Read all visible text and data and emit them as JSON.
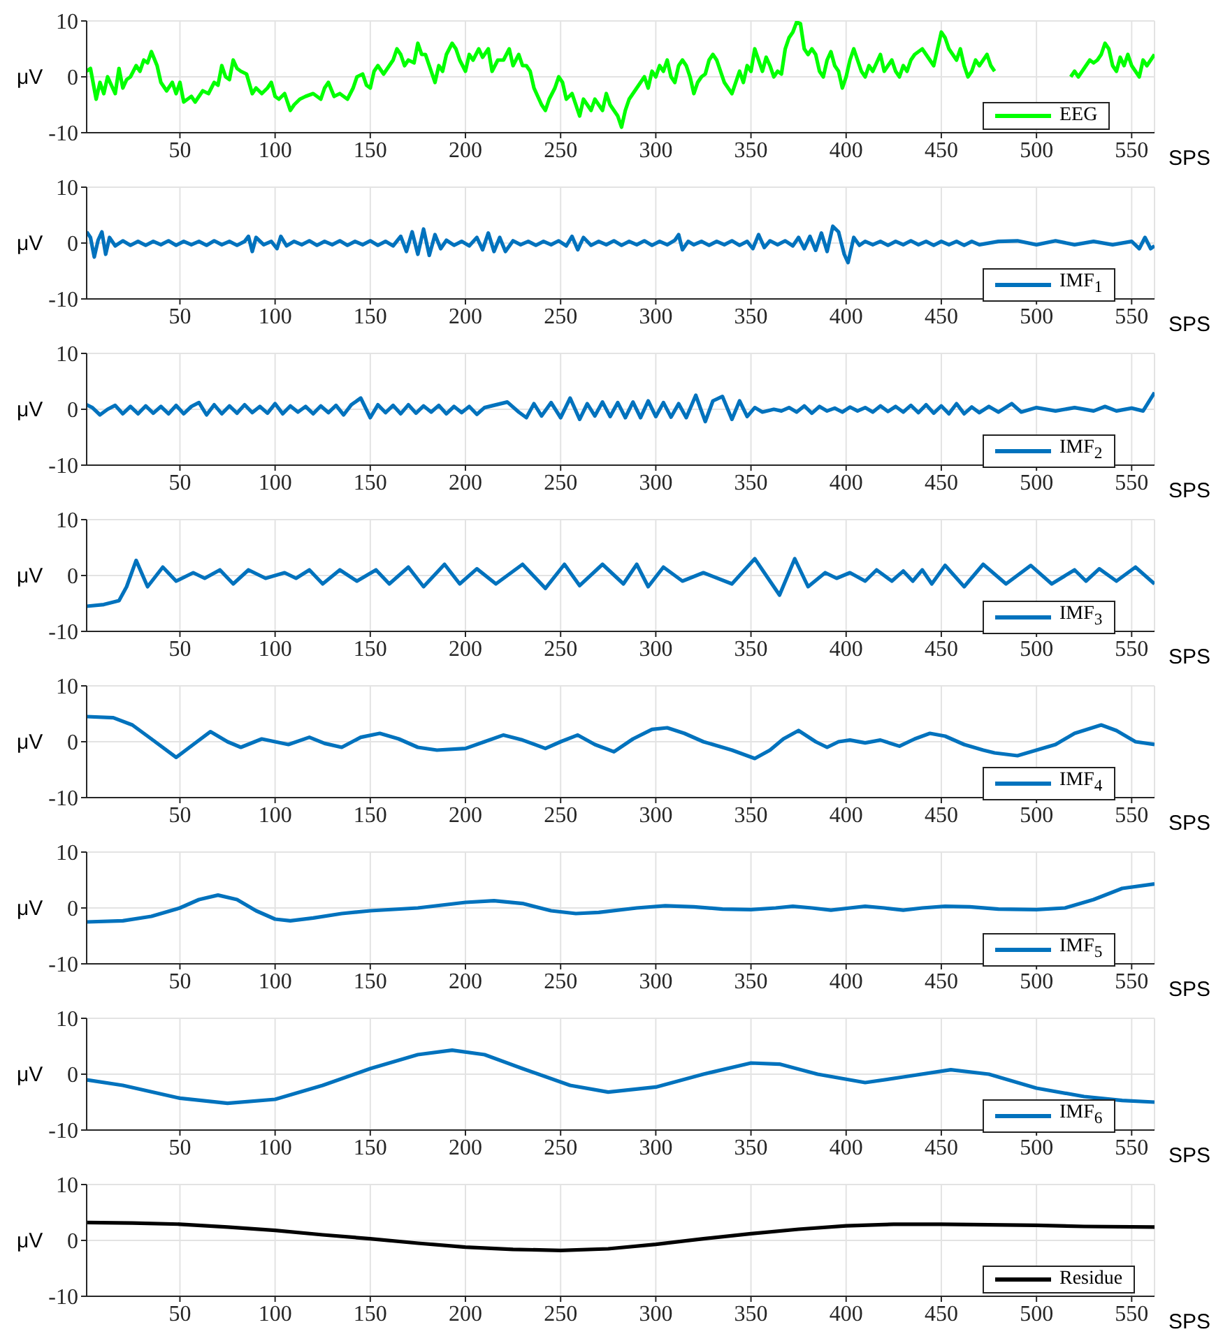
{
  "chart_data": [
    {
      "type": "line",
      "xlabel": "SPS",
      "ylabel": "μV",
      "xlim": [
        1,
        562
      ],
      "xticks": [
        50,
        100,
        150,
        200,
        250,
        300,
        350,
        400,
        450,
        500,
        550
      ],
      "ylim": [
        -10,
        10
      ],
      "yticks": [
        -10,
        0,
        10
      ],
      "grid": true,
      "legend": "bottom right",
      "x": [
        1,
        3,
        6,
        8,
        10,
        12,
        14,
        16,
        18,
        20,
        22,
        24,
        27,
        29,
        31,
        33,
        35,
        38,
        40,
        43,
        46,
        48,
        50,
        52,
        56,
        58,
        62,
        65,
        68,
        70,
        72,
        74,
        76,
        78,
        80,
        82,
        85,
        88,
        90,
        93,
        96,
        98,
        100,
        102,
        105,
        108,
        110,
        113,
        116,
        120,
        124,
        126,
        128,
        131,
        134,
        138,
        141,
        143,
        146,
        148,
        150,
        152,
        154,
        157,
        160,
        162,
        164,
        166,
        168,
        170,
        173,
        175,
        177,
        179,
        181,
        184,
        186,
        188,
        190,
        193,
        195,
        197,
        200,
        202,
        204,
        207,
        209,
        212,
        214,
        217,
        220,
        223,
        225,
        228,
        230,
        232,
        234,
        236,
        238,
        240,
        242,
        244,
        247,
        249,
        251,
        253,
        256,
        258,
        260,
        262,
        264,
        266,
        268,
        270,
        272,
        274,
        276,
        278,
        280,
        282,
        284,
        286,
        288,
        290,
        292,
        294,
        296,
        298,
        300,
        302,
        304,
        306,
        308,
        310,
        312,
        314,
        316,
        318,
        320,
        322,
        324,
        326,
        328,
        330,
        332,
        334,
        336,
        338,
        340,
        342,
        344,
        346,
        348,
        350,
        352,
        354,
        356,
        358,
        360,
        362,
        364,
        366,
        368,
        370,
        372,
        374,
        376,
        378,
        380,
        382,
        384,
        386,
        388,
        390,
        392,
        394,
        396,
        398,
        400,
        402,
        404,
        406,
        408,
        410,
        412,
        414,
        416,
        418,
        420,
        422,
        424,
        426,
        428,
        430,
        432,
        434,
        436,
        438,
        440,
        442,
        444,
        446,
        448,
        450,
        452,
        454,
        456,
        458,
        460,
        462,
        464,
        466,
        468,
        470,
        472,
        474,
        476,
        478,
        495,
        518,
        520,
        522,
        524,
        526,
        528,
        530,
        532,
        534,
        536,
        538,
        540,
        542,
        544,
        546,
        548,
        550,
        552,
        554,
        556,
        558,
        560,
        562
      ],
      "series": [
        {
          "name": "EEG",
          "color": "#00ff00",
          "values": [
            1,
            1.5,
            -4,
            -1,
            -3,
            0,
            -1.5,
            -3,
            1.5,
            -2,
            -0.5,
            0,
            2,
            1,
            3,
            2.5,
            4.5,
            2,
            -1,
            -2.5,
            -1,
            -3,
            -1,
            -4.5,
            -3.5,
            -4.5,
            -2.5,
            -3,
            -1,
            -1.5,
            2,
            0,
            -0.5,
            3,
            1.5,
            1,
            0.5,
            -3,
            -2,
            -3,
            -2,
            -1,
            -3.5,
            -4,
            -3,
            -6,
            -5,
            -4,
            -3.5,
            -3,
            -4,
            -2,
            -1,
            -3.5,
            -3,
            -4,
            -2,
            0,
            0.5,
            -1.5,
            -2,
            1,
            2,
            0.5,
            2,
            3,
            5,
            4,
            2,
            3,
            2.5,
            6,
            4,
            4,
            2,
            -1,
            2,
            1,
            4,
            6,
            5,
            3,
            1,
            4,
            3,
            5,
            3.5,
            5,
            1,
            3,
            3,
            5,
            2,
            4,
            2,
            2,
            1,
            -2,
            -3.5,
            -5,
            -6,
            -4,
            -2,
            0,
            -1,
            -4,
            -3,
            -5,
            -7,
            -4,
            -5,
            -6,
            -4,
            -5,
            -6,
            -3,
            -5,
            -6,
            -7,
            -9,
            -6,
            -4,
            -3,
            -2,
            -1,
            0,
            -2,
            1,
            0,
            2,
            1,
            3,
            0,
            -1,
            2,
            3,
            2,
            0,
            -3,
            -1,
            0,
            0.5,
            3,
            4,
            3,
            1,
            -1,
            -2,
            -3,
            -1,
            1,
            -1,
            2,
            1,
            5,
            3,
            1,
            3.5,
            2,
            0,
            1,
            0.5,
            5,
            7,
            8,
            9.8,
            9.5,
            5,
            4,
            5,
            4,
            1,
            0,
            3,
            4.5,
            2,
            1,
            -2,
            0,
            3,
            5,
            3,
            1,
            0,
            2,
            1,
            2.5,
            4,
            1,
            2,
            3,
            1,
            0,
            2,
            1,
            3,
            4,
            4.5,
            5,
            4,
            3,
            2,
            5,
            8,
            7,
            5,
            4,
            3,
            5,
            2,
            0,
            1,
            3,
            2,
            3,
            4,
            2,
            1,
            null,
            0,
            1,
            0,
            1,
            2,
            3,
            2.5,
            3,
            4,
            6,
            5,
            2,
            1,
            3.5,
            2,
            4,
            2,
            1,
            0,
            3,
            2,
            3,
            4
          ]
        }
      ]
    },
    {
      "type": "line",
      "xlabel": "SPS",
      "ylabel": "μV",
      "xlim": [
        1,
        562
      ],
      "xticks": [
        50,
        100,
        150,
        200,
        250,
        300,
        350,
        400,
        450,
        500,
        550
      ],
      "ylim": [
        -10,
        10
      ],
      "yticks": [
        -10,
        0,
        10
      ],
      "grid": true,
      "legend": "bottom right",
      "x": [
        1,
        3,
        5,
        7,
        9,
        11,
        13,
        16,
        20,
        24,
        28,
        32,
        36,
        40,
        44,
        48,
        52,
        56,
        60,
        64,
        68,
        72,
        76,
        80,
        84,
        86,
        88,
        90,
        94,
        98,
        101,
        103,
        106,
        110,
        114,
        118,
        122,
        126,
        130,
        134,
        138,
        142,
        146,
        150,
        154,
        158,
        162,
        166,
        169,
        172,
        175,
        178,
        181,
        184,
        187,
        190,
        194,
        198,
        202,
        206,
        209,
        212,
        215,
        218,
        221,
        225,
        229,
        233,
        237,
        241,
        245,
        249,
        253,
        256,
        259,
        262,
        266,
        270,
        274,
        278,
        282,
        286,
        290,
        294,
        298,
        302,
        306,
        310,
        312,
        314,
        317,
        320,
        324,
        328,
        332,
        336,
        340,
        344,
        348,
        351,
        354,
        357,
        360,
        364,
        368,
        372,
        375,
        378,
        381,
        384,
        387,
        390,
        393,
        396,
        399,
        401,
        404,
        407,
        410,
        414,
        418,
        422,
        426,
        430,
        434,
        438,
        442,
        446,
        450,
        454,
        458,
        462,
        466,
        470,
        480,
        490,
        500,
        510,
        520,
        530,
        540,
        550,
        554,
        557,
        560,
        562
      ],
      "series": [
        {
          "name": "IMF$_{1}$",
          "color": "#0072bd",
          "values": [
            2,
            1,
            -2.5,
            0.5,
            2,
            -2,
            1,
            -0.5,
            0.4,
            -0.4,
            0.3,
            -0.4,
            0.3,
            -0.3,
            0.4,
            -0.4,
            0.3,
            -0.3,
            0.3,
            -0.4,
            0.4,
            -0.3,
            0.3,
            -0.4,
            0.3,
            1.2,
            -1.5,
            1,
            -0.3,
            0.3,
            -1,
            1.2,
            -0.5,
            0.3,
            -0.3,
            0.4,
            -0.4,
            0.3,
            -0.3,
            0.4,
            -0.4,
            0.3,
            -0.3,
            0.4,
            -0.4,
            0.3,
            -0.5,
            1.2,
            -1.5,
            2,
            -2,
            2.5,
            -2.2,
            1.5,
            -1,
            0.5,
            -0.4,
            0.3,
            -0.5,
            1,
            -1.2,
            1.8,
            -1.5,
            1,
            -1.5,
            0.4,
            -0.3,
            0.3,
            -0.4,
            0.3,
            -0.3,
            0.4,
            -0.5,
            1.2,
            -1.2,
            1,
            -0.4,
            0.3,
            -0.3,
            0.4,
            -0.4,
            0.3,
            -0.3,
            0.4,
            -0.4,
            0.3,
            -0.3,
            0.5,
            1.5,
            -1.2,
            0.3,
            -0.3,
            0.3,
            -0.4,
            0.3,
            -0.3,
            0.4,
            -0.4,
            0.3,
            -1,
            1.5,
            -0.8,
            0.4,
            -0.3,
            0.4,
            -0.5,
            1,
            -1,
            1.2,
            -1.3,
            1.8,
            -1.5,
            3,
            2,
            -2,
            -3.5,
            1,
            -0.4,
            0.3,
            -0.3,
            0.3,
            -0.4,
            0.3,
            -0.3,
            0.4,
            -0.3,
            0.3,
            -0.4,
            0.3,
            -0.3,
            0.3,
            -0.4,
            0.3,
            -0.3,
            0.3,
            0.4,
            -0.3,
            0.4,
            -0.3,
            0.3,
            -0.3,
            0.3,
            -1,
            1,
            -1,
            -0.5
          ]
        }
      ]
    },
    {
      "type": "line",
      "xlabel": "SPS",
      "ylabel": "μV",
      "xlim": [
        1,
        562
      ],
      "xticks": [
        50,
        100,
        150,
        200,
        250,
        300,
        350,
        400,
        450,
        500,
        550
      ],
      "ylim": [
        -10,
        10
      ],
      "yticks": [
        -10,
        0,
        10
      ],
      "grid": true,
      "legend": "bottom right",
      "x": [
        1,
        4,
        8,
        12,
        16,
        20,
        24,
        28,
        32,
        36,
        40,
        44,
        48,
        52,
        56,
        60,
        64,
        68,
        72,
        76,
        80,
        84,
        88,
        92,
        96,
        100,
        104,
        108,
        112,
        116,
        120,
        124,
        128,
        132,
        136,
        140,
        145,
        150,
        154,
        158,
        162,
        166,
        170,
        174,
        178,
        182,
        186,
        190,
        194,
        198,
        202,
        206,
        210,
        216,
        222,
        228,
        232,
        236,
        240,
        245,
        250,
        255,
        260,
        264,
        268,
        272,
        276,
        280,
        284,
        288,
        292,
        296,
        300,
        304,
        308,
        312,
        316,
        321,
        326,
        330,
        335,
        340,
        344,
        348,
        352,
        356,
        362,
        366,
        370,
        374,
        378,
        382,
        386,
        390,
        394,
        398,
        402,
        406,
        410,
        414,
        418,
        422,
        426,
        430,
        434,
        438,
        442,
        446,
        450,
        454,
        458,
        462,
        466,
        470,
        475,
        480,
        487,
        492,
        500,
        510,
        520,
        530,
        536,
        542,
        550,
        556,
        562
      ],
      "series": [
        {
          "name": "IMF$_{2}$",
          "color": "#0072bd",
          "values": [
            0.8,
            0.3,
            -1,
            0,
            0.7,
            -0.8,
            0.5,
            -0.8,
            0.6,
            -0.7,
            0.5,
            -0.8,
            0.7,
            -0.8,
            0.5,
            1.2,
            -1,
            0.8,
            -0.8,
            0.6,
            -0.7,
            0.8,
            -0.6,
            0.5,
            -0.7,
            1,
            -0.8,
            0.6,
            -0.5,
            0.5,
            -0.8,
            0.6,
            -0.6,
            0.7,
            -1,
            0.8,
            2,
            -1.5,
            0.8,
            -0.6,
            0.7,
            -0.8,
            0.8,
            -0.7,
            0.6,
            -0.5,
            0.7,
            -0.8,
            0.5,
            -0.6,
            0.5,
            -0.9,
            0.3,
            0.8,
            1.3,
            -0.5,
            -1.5,
            1,
            -1.2,
            1.2,
            -1.5,
            2,
            -1.8,
            1,
            -1.2,
            1.3,
            -1.3,
            1.2,
            -1.5,
            1.3,
            -1.5,
            1.5,
            -1.3,
            1.2,
            -1.4,
            1,
            -1.5,
            2.5,
            -2.2,
            1.5,
            2.3,
            -1.8,
            1.5,
            -1.3,
            0.3,
            -0.5,
            0,
            -0.3,
            0.3,
            -0.5,
            0.6,
            -0.7,
            0.5,
            -0.3,
            0.2,
            -0.5,
            0.4,
            -0.3,
            0.3,
            -0.5,
            0.6,
            -0.4,
            0.5,
            -0.5,
            0.7,
            -0.6,
            0.8,
            -0.7,
            0.6,
            -0.8,
            1,
            -0.8,
            0.4,
            -0.6,
            0.5,
            -0.5,
            1,
            -0.5,
            0.3,
            -0.3,
            0.3,
            -0.3,
            0.5,
            -0.3,
            0.2,
            -0.3,
            3
          ]
        }
      ]
    },
    {
      "type": "line",
      "xlabel": "SPS",
      "ylabel": "μV",
      "xlim": [
        1,
        562
      ],
      "xticks": [
        50,
        100,
        150,
        200,
        250,
        300,
        350,
        400,
        450,
        500,
        550
      ],
      "ylim": [
        -10,
        10
      ],
      "yticks": [
        -10,
        0,
        10
      ],
      "grid": true,
      "legend": "bottom right",
      "x": [
        1,
        10,
        18,
        22,
        27,
        33,
        41,
        48,
        57,
        63,
        71,
        78,
        86,
        95,
        105,
        111,
        118,
        125,
        134,
        143,
        153,
        160,
        170,
        178,
        189,
        197,
        206,
        216,
        230,
        242,
        252,
        260,
        272,
        283,
        290,
        296,
        304,
        314,
        325,
        340,
        352,
        365,
        373,
        380,
        389,
        395,
        402,
        410,
        416,
        424,
        430,
        435,
        440,
        445,
        452,
        462,
        472,
        484,
        497,
        508,
        520,
        526,
        533,
        542,
        552,
        562
      ],
      "series": [
        {
          "name": "IMF$_{3}$",
          "color": "#0072bd",
          "values": [
            -5.5,
            -5.2,
            -4.5,
            -2,
            2.7,
            -2,
            1.5,
            -1,
            0.5,
            -0.5,
            1,
            -1.5,
            1,
            -0.5,
            0.5,
            -0.5,
            1,
            -1.5,
            1,
            -1,
            1,
            -1.5,
            1.5,
            -2,
            2,
            -1.5,
            1.2,
            -1.5,
            2,
            -2.3,
            2,
            -1.8,
            2,
            -1.5,
            2,
            -2,
            1.5,
            -1,
            0.5,
            -1.5,
            3,
            -3.5,
            3,
            -2,
            0.5,
            -0.5,
            0.5,
            -1,
            1,
            -1,
            0.8,
            -1,
            1,
            -1.5,
            1.8,
            -2,
            2,
            -1.5,
            1.8,
            -1.5,
            1,
            -1,
            1.2,
            -1,
            1.5,
            -1.5
          ]
        }
      ]
    },
    {
      "type": "line",
      "xlabel": "SPS",
      "ylabel": "μV",
      "xlim": [
        1,
        562
      ],
      "xticks": [
        50,
        100,
        150,
        200,
        250,
        300,
        350,
        400,
        450,
        500,
        550
      ],
      "ylim": [
        -10,
        10
      ],
      "yticks": [
        -10,
        0,
        10
      ],
      "grid": true,
      "legend": "bottom right",
      "x": [
        1,
        15,
        25,
        35,
        48,
        57,
        66,
        75,
        82,
        93,
        100,
        107,
        118,
        126,
        135,
        145,
        155,
        165,
        175,
        185,
        200,
        210,
        220,
        230,
        242,
        250,
        259,
        268,
        278,
        288,
        298,
        306,
        315,
        325,
        340,
        352,
        360,
        367,
        375,
        384,
        390,
        396,
        402,
        410,
        418,
        428,
        436,
        444,
        452,
        462,
        472,
        478,
        490,
        500,
        510,
        520,
        534,
        542,
        552,
        562
      ],
      "series": [
        {
          "name": "IMF$_{4}$",
          "color": "#0072bd",
          "values": [
            4.5,
            4.3,
            3,
            0.5,
            -2.8,
            -0.5,
            1.8,
            0,
            -1,
            0.5,
            0,
            -0.5,
            0.8,
            -0.3,
            -1,
            0.8,
            1.5,
            0.5,
            -1,
            -1.5,
            -1.2,
            0,
            1.2,
            0.3,
            -1.2,
            0,
            1.2,
            -0.5,
            -1.8,
            0.5,
            2.2,
            2.5,
            1.5,
            0,
            -1.5,
            -3,
            -1.5,
            0.5,
            2,
            0,
            -1,
            0,
            0.3,
            -0.2,
            0.3,
            -0.8,
            0.5,
            1.5,
            1,
            -0.5,
            -1.5,
            -2,
            -2.5,
            -1.5,
            -0.5,
            1.5,
            3,
            2,
            0,
            -0.5
          ]
        }
      ]
    },
    {
      "type": "line",
      "xlabel": "SPS",
      "ylabel": "μV",
      "xlim": [
        1,
        562
      ],
      "xticks": [
        50,
        100,
        150,
        200,
        250,
        300,
        350,
        400,
        450,
        500,
        550
      ],
      "ylim": [
        -10,
        10
      ],
      "yticks": [
        -10,
        0,
        10
      ],
      "grid": true,
      "legend": "bottom right",
      "x": [
        1,
        20,
        35,
        50,
        60,
        70,
        80,
        90,
        100,
        108,
        120,
        135,
        150,
        175,
        200,
        215,
        230,
        245,
        258,
        270,
        290,
        305,
        320,
        335,
        350,
        363,
        372,
        382,
        392,
        402,
        410,
        420,
        430,
        440,
        452,
        465,
        480,
        500,
        515,
        530,
        545,
        562
      ],
      "series": [
        {
          "name": "IMF$_{5}$",
          "color": "#0072bd",
          "values": [
            -2.5,
            -2.3,
            -1.5,
            0,
            1.5,
            2.3,
            1.5,
            -0.5,
            -2,
            -2.3,
            -1.8,
            -1,
            -0.5,
            0,
            1,
            1.3,
            0.8,
            -0.5,
            -1,
            -0.8,
            0,
            0.4,
            0.2,
            -0.2,
            -0.3,
            0,
            0.3,
            0,
            -0.4,
            0,
            0.3,
            0,
            -0.4,
            0,
            0.3,
            0.2,
            -0.2,
            -0.3,
            0,
            1.5,
            3.5,
            4.3
          ]
        }
      ]
    },
    {
      "type": "line",
      "xlabel": "SPS",
      "ylabel": "μV",
      "xlim": [
        1,
        562
      ],
      "xticks": [
        50,
        100,
        150,
        200,
        250,
        300,
        350,
        400,
        450,
        500,
        550
      ],
      "ylim": [
        -10,
        10
      ],
      "yticks": [
        -10,
        0,
        10
      ],
      "grid": true,
      "legend": "bottom right",
      "x": [
        1,
        20,
        50,
        75,
        100,
        125,
        150,
        175,
        193,
        210,
        230,
        255,
        275,
        300,
        325,
        350,
        365,
        385,
        410,
        430,
        455,
        475,
        500,
        525,
        545,
        562
      ],
      "series": [
        {
          "name": "IMF$_{6}$",
          "color": "#0072bd",
          "values": [
            -1,
            -2,
            -4.3,
            -5.2,
            -4.5,
            -2,
            1,
            3.5,
            4.3,
            3.5,
            1,
            -2,
            -3.2,
            -2.3,
            0,
            2,
            1.8,
            0,
            -1.5,
            -0.5,
            0.8,
            0,
            -2.5,
            -4,
            -4.7,
            -5
          ]
        }
      ]
    },
    {
      "type": "line",
      "xlabel": "SPS",
      "ylabel": "μV",
      "xlim": [
        1,
        562
      ],
      "xticks": [
        50,
        100,
        150,
        200,
        250,
        300,
        350,
        400,
        450,
        500,
        550
      ],
      "ylim": [
        -10,
        10
      ],
      "yticks": [
        -10,
        0,
        10
      ],
      "grid": true,
      "legend": "bottom right",
      "x": [
        1,
        25,
        50,
        75,
        100,
        125,
        150,
        175,
        200,
        225,
        250,
        275,
        300,
        325,
        350,
        375,
        400,
        425,
        450,
        475,
        500,
        525,
        562
      ],
      "series": [
        {
          "name": "Residue",
          "color": "#000000",
          "values": [
            3.2,
            3.1,
            2.9,
            2.4,
            1.8,
            1,
            0.3,
            -0.5,
            -1.2,
            -1.6,
            -1.8,
            -1.5,
            -0.7,
            0.3,
            1.2,
            2,
            2.6,
            2.9,
            2.9,
            2.8,
            2.7,
            2.5,
            2.4
          ]
        }
      ]
    }
  ]
}
